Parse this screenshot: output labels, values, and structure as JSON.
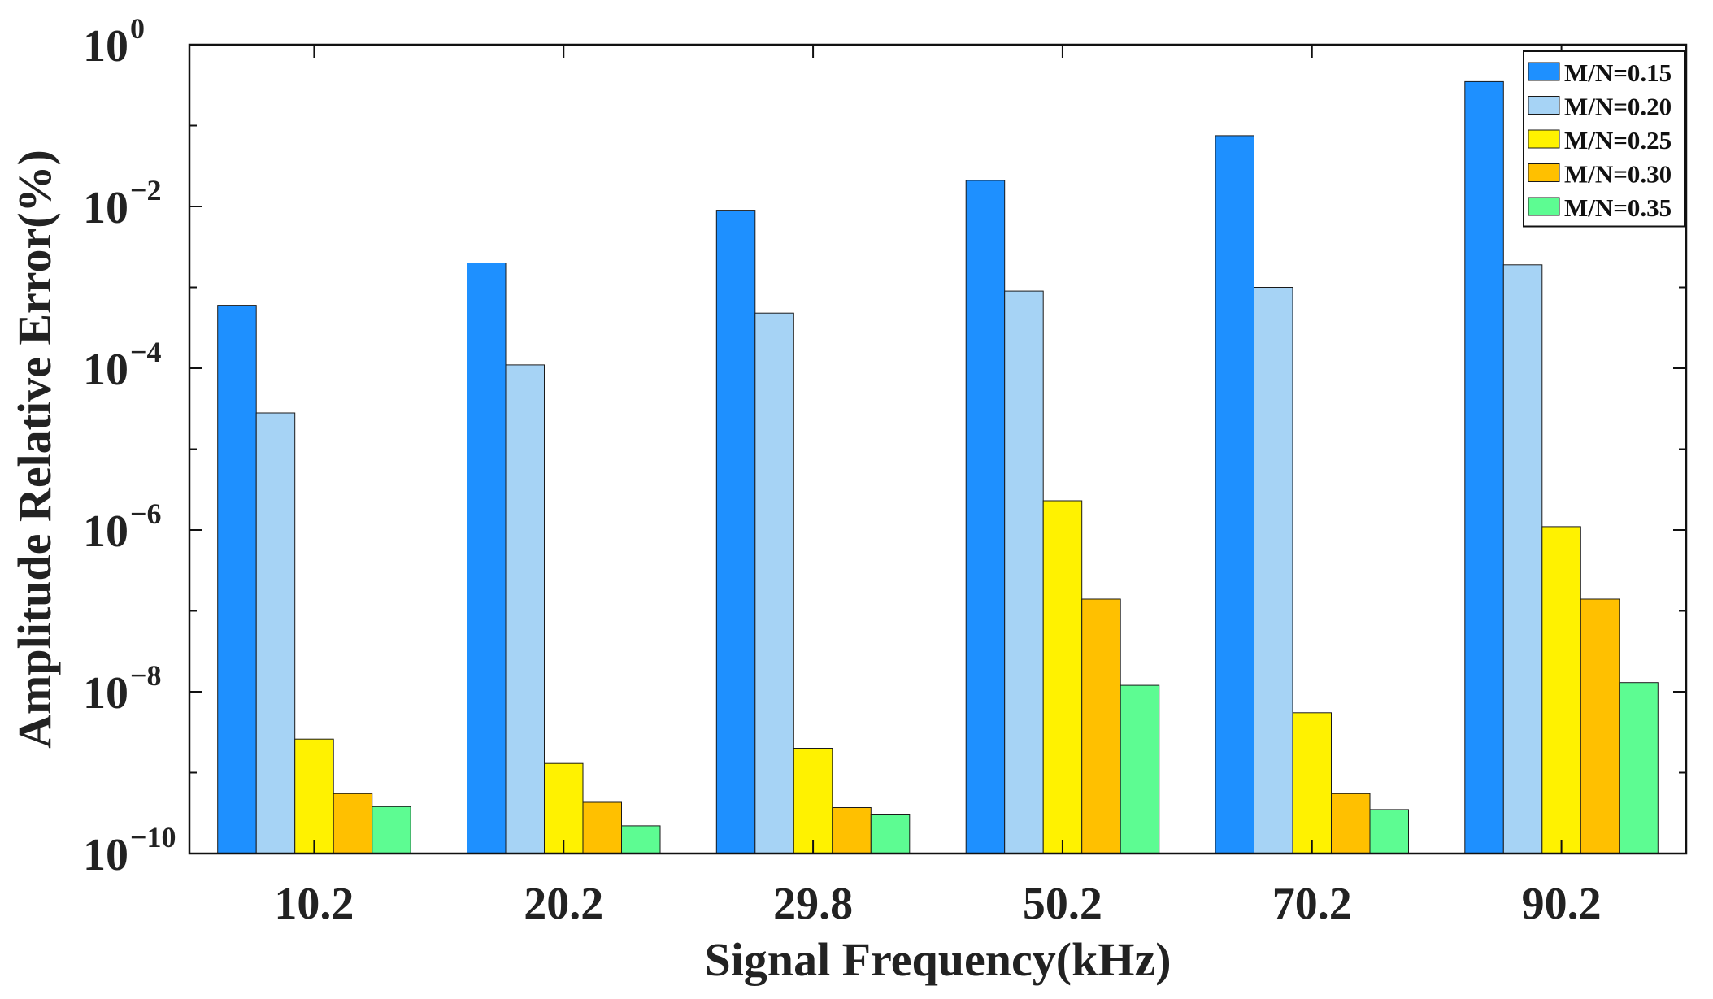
{
  "chart_data": {
    "type": "bar",
    "title": "",
    "xlabel": "Signal Frequency(kHz)",
    "ylabel": "Amplitude Relative Error(%)",
    "yscale": "log",
    "ylim": [
      1e-10,
      1
    ],
    "y_ticks": [
      {
        "base": "10",
        "exp": "0",
        "value": 1
      },
      {
        "base": "10",
        "exp": "−2",
        "value": 0.01
      },
      {
        "base": "10",
        "exp": "−4",
        "value": 0.0001
      },
      {
        "base": "10",
        "exp": "−6",
        "value": 1e-06
      },
      {
        "base": "10",
        "exp": "−8",
        "value": 1e-08
      },
      {
        "base": "10",
        "exp": "−10",
        "value": 1e-10
      }
    ],
    "categories": [
      "10.2",
      "20.2",
      "29.8",
      "50.2",
      "70.2",
      "90.2"
    ],
    "legend_position": "top-right",
    "series": [
      {
        "name": "M/N=0.15",
        "color": "#1e90ff",
        "values": [
          0.0006,
          0.002,
          0.009,
          0.021,
          0.075,
          0.35
        ]
      },
      {
        "name": "M/N=0.20",
        "color": "#a6d3f5",
        "values": [
          2.8e-05,
          0.00011,
          0.00048,
          0.0009,
          0.001,
          0.0019
        ]
      },
      {
        "name": "M/N=0.25",
        "color": "#fff200",
        "values": [
          2.6e-09,
          1.3e-09,
          2e-09,
          2.3e-06,
          5.5e-09,
          1.1e-06
        ]
      },
      {
        "name": "M/N=0.30",
        "color": "#ffc000",
        "values": [
          5.5e-10,
          4.3e-10,
          3.7e-10,
          1.4e-07,
          5.5e-10,
          1.4e-07
        ]
      },
      {
        "name": "M/N=0.35",
        "color": "#5dfc92",
        "values": [
          3.8e-10,
          2.2e-10,
          3e-10,
          1.2e-08,
          3.5e-10,
          1.3e-08
        ]
      }
    ]
  }
}
